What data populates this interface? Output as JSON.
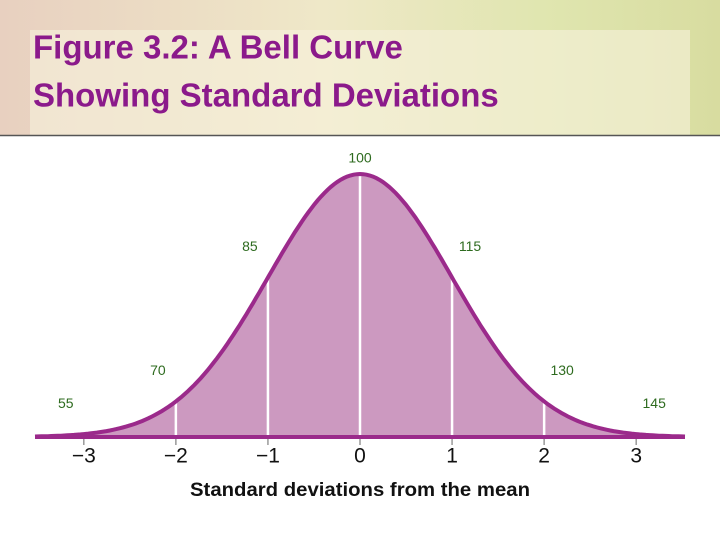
{
  "chart_data": {
    "type": "bell",
    "title": "Figure 3.2: A Bell Curve",
    "subtitle": "Showing Standard Deviations",
    "xlabel": "Standard deviations from the mean",
    "xlim": [
      -3.53,
      3.53
    ],
    "xticks": [
      {
        "value": -3,
        "label": "−3"
      },
      {
        "value": -2,
        "label": "−2"
      },
      {
        "value": -1,
        "label": "−1"
      },
      0,
      1,
      2,
      3
    ],
    "x": [
      -3,
      -2,
      -1,
      0,
      1,
      2,
      3
    ],
    "values": [
      55,
      70,
      85,
      100,
      115,
      130,
      145
    ],
    "color": "#cc99c0",
    "line_color": "#9b2a8b"
  }
}
